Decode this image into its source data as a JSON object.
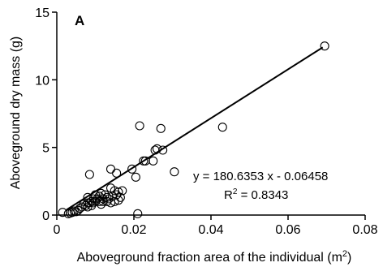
{
  "chart_data": {
    "type": "scatter",
    "panel_label": "A",
    "xlabel": "Aboveground fraction area of the individual (m",
    "xlabel_sup": "2",
    "xlabel_close": ")",
    "ylabel": "Aboveground dry mass (g)",
    "xlim": [
      0,
      0.08
    ],
    "ylim": [
      0,
      15
    ],
    "x_ticks": [
      0,
      0.02,
      0.04,
      0.06,
      0.08
    ],
    "x_tick_labels": [
      "0",
      "0.02",
      "0.04",
      "0.06",
      "0.08"
    ],
    "y_ticks": [
      0,
      5,
      10,
      15
    ],
    "y_tick_labels": [
      "0",
      "5",
      "10",
      "15"
    ],
    "regression": {
      "slope": 180.6353,
      "intercept": -0.06458,
      "x_range": [
        0.0025,
        0.069
      ],
      "equation_label": "y = 180.6353 x - 0.06458",
      "r2_prefix": "R",
      "r2_sup": "2",
      "r2_value": " = 0.8343"
    },
    "points": [
      [
        0.0015,
        0.2
      ],
      [
        0.003,
        0.1
      ],
      [
        0.0035,
        0.15
      ],
      [
        0.004,
        0.2
      ],
      [
        0.0045,
        0.3
      ],
      [
        0.005,
        0.25
      ],
      [
        0.0055,
        0.35
      ],
      [
        0.006,
        0.5
      ],
      [
        0.0065,
        0.6
      ],
      [
        0.007,
        0.8
      ],
      [
        0.0075,
        0.7
      ],
      [
        0.008,
        0.9
      ],
      [
        0.008,
        0.6
      ],
      [
        0.0085,
        0.9
      ],
      [
        0.009,
        1.0
      ],
      [
        0.009,
        0.7
      ],
      [
        0.0095,
        1.2
      ],
      [
        0.0095,
        0.9
      ],
      [
        0.01,
        1.5
      ],
      [
        0.01,
        1.0
      ],
      [
        0.0105,
        1.2
      ],
      [
        0.011,
        1.4
      ],
      [
        0.011,
        1.0
      ],
      [
        0.0115,
        0.8
      ],
      [
        0.012,
        1.2
      ],
      [
        0.012,
        1.0
      ],
      [
        0.0125,
        1.5
      ],
      [
        0.013,
        1.3
      ],
      [
        0.013,
        1.0
      ],
      [
        0.0135,
        1.2
      ],
      [
        0.014,
        2.0
      ],
      [
        0.014,
        0.9
      ],
      [
        0.0145,
        1.4
      ],
      [
        0.015,
        1.8
      ],
      [
        0.015,
        1.0
      ],
      [
        0.0155,
        1.5
      ],
      [
        0.016,
        1.7
      ],
      [
        0.016,
        1.1
      ],
      [
        0.0165,
        1.3
      ],
      [
        0.017,
        1.8
      ],
      [
        0.008,
        1.3
      ],
      [
        0.0115,
        1.6
      ],
      [
        0.0085,
        3.0
      ],
      [
        0.014,
        3.4
      ],
      [
        0.0155,
        3.1
      ],
      [
        0.0195,
        3.4
      ],
      [
        0.0205,
        2.8
      ],
      [
        0.021,
        0.1
      ],
      [
        0.0215,
        6.6
      ],
      [
        0.0225,
        4.0
      ],
      [
        0.023,
        4.0
      ],
      [
        0.0255,
        4.8
      ],
      [
        0.026,
        4.9
      ],
      [
        0.025,
        4.0
      ],
      [
        0.027,
        6.4
      ],
      [
        0.0275,
        4.8
      ],
      [
        0.0305,
        3.2
      ],
      [
        0.043,
        6.5
      ],
      [
        0.0695,
        12.5
      ]
    ]
  }
}
